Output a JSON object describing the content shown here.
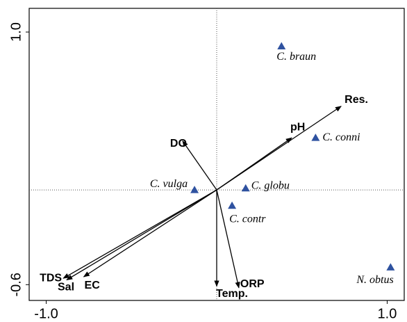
{
  "chart_data": {
    "type": "biplot",
    "xlim": [
      -1.1,
      1.1
    ],
    "ylim": [
      -0.7,
      1.15
    ],
    "xticks": [
      {
        "value": -1.0,
        "label": "-1.0"
      },
      {
        "value": 1.0,
        "label": "1.0"
      }
    ],
    "yticks": [
      {
        "value": 1.0,
        "label": "1.0"
      },
      {
        "value": -0.6,
        "label": "-0.6"
      }
    ],
    "points": {
      "color": "#2f52a0",
      "names": [
        "C. braun",
        "C. conni",
        "C. globu",
        "C. vulga",
        "C. contr",
        "N. obtus"
      ],
      "x": [
        0.38,
        0.58,
        0.17,
        -0.13,
        0.09,
        1.02
      ],
      "y": [
        0.91,
        0.33,
        0.01,
        0.0,
        -0.1,
        -0.49
      ]
    },
    "arrows": {
      "color": "#000000",
      "names": [
        "Res.",
        "pH",
        "DO",
        "TDS",
        "Sal",
        "EC",
        "Temp.",
        "ORP"
      ],
      "x": [
        0.73,
        0.44,
        -0.2,
        -0.9,
        -0.88,
        -0.78,
        0.0,
        0.13
      ],
      "y": [
        0.53,
        0.33,
        0.31,
        -0.56,
        -0.57,
        -0.55,
        -0.61,
        -0.62
      ]
    }
  }
}
